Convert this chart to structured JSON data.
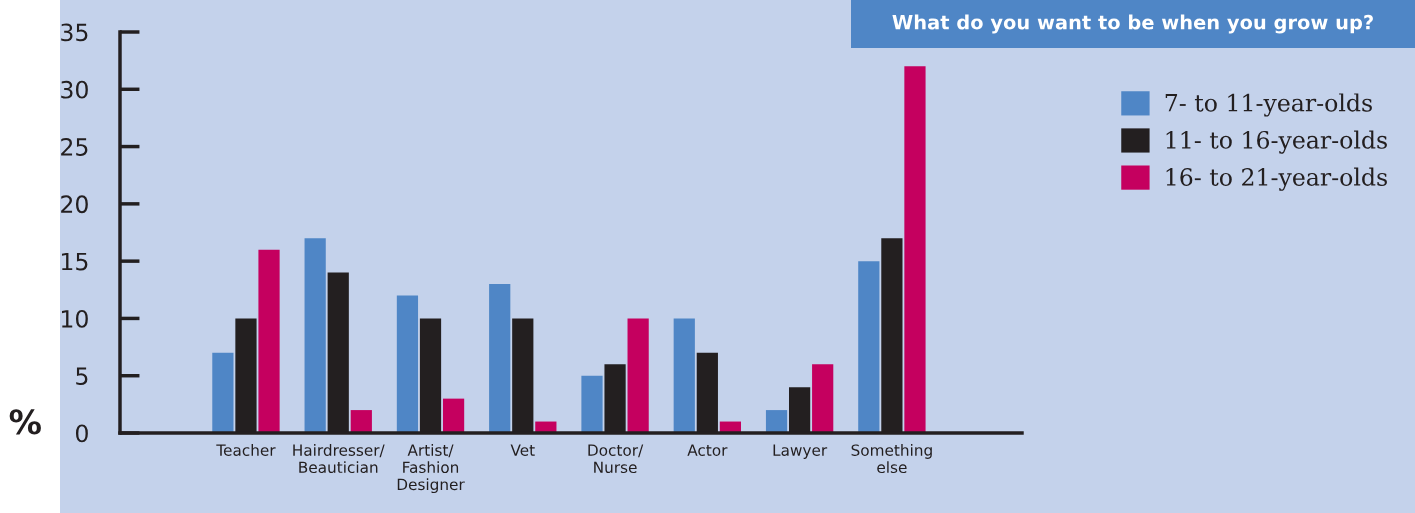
{
  "chart_data": {
    "type": "bar",
    "title": "What do you want to be when you grow up?",
    "ylabel": "%",
    "categories": [
      "Teacher",
      "Hairdresser/\nBeautician",
      "Artist/\nFashion\nDesigner",
      "Vet",
      "Doctor/\nNurse",
      "Actor",
      "Lawyer",
      "Something\nelse"
    ],
    "series": [
      {
        "name": "7- to 11-year-olds",
        "color": "#4f86c6",
        "values": [
          7,
          17,
          12,
          13,
          5,
          10,
          2,
          15
        ]
      },
      {
        "name": "11- to 16-year-olds",
        "color": "#231f20",
        "values": [
          10,
          14,
          10,
          10,
          6,
          7,
          4,
          17
        ]
      },
      {
        "name": "16- to 21-year-olds",
        "color": "#c5005f",
        "values": [
          16,
          2,
          3,
          1,
          10,
          1,
          6,
          32
        ]
      }
    ],
    "ylim": [
      0,
      35
    ],
    "yticks": [
      0,
      5,
      10,
      15,
      20,
      25,
      30,
      35
    ],
    "grid": false,
    "legend": "right"
  }
}
